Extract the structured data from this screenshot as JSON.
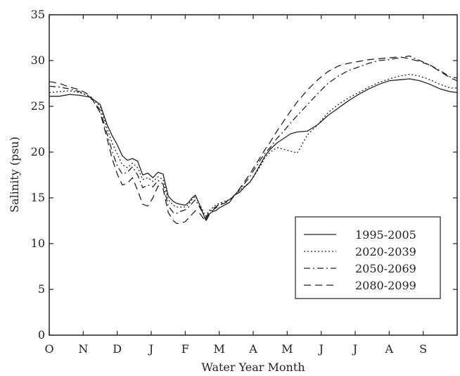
{
  "chart_data": {
    "type": "line",
    "xlabel": "Water Year Month",
    "ylabel": "Salinity (psu)",
    "ylim": [
      0,
      35
    ],
    "yticks": [
      "0",
      "5",
      "10",
      "15",
      "20",
      "25",
      "30",
      "35"
    ],
    "x_categories": [
      "O",
      "N",
      "D",
      "J",
      "F",
      "M",
      "A",
      "M",
      "J",
      "J",
      "A",
      "S"
    ],
    "xlim": [
      0,
      12
    ],
    "grid": false,
    "legend_position": "bottom-right",
    "series": [
      {
        "name": "1995-2005",
        "dash": "solid",
        "x": [
          0,
          0.3,
          0.6,
          0.9,
          1.2,
          1.5,
          1.7,
          1.85,
          2.0,
          2.15,
          2.3,
          2.45,
          2.6,
          2.75,
          2.9,
          3.05,
          3.2,
          3.35,
          3.5,
          3.65,
          3.75,
          3.85,
          4.0,
          4.1,
          4.2,
          4.3,
          4.45,
          4.6,
          4.7,
          4.8,
          4.9,
          5.0,
          5.15,
          5.3,
          5.45,
          5.6,
          5.75,
          5.9,
          6.05,
          6.2,
          6.35,
          6.5,
          6.7,
          6.9,
          7.1,
          7.3,
          7.6,
          7.9,
          8.2,
          8.5,
          8.8,
          9.1,
          9.4,
          9.7,
          10.0,
          10.3,
          10.6,
          10.9,
          11.2,
          11.5,
          11.8,
          12
        ],
        "y": [
          26.1,
          26.1,
          26.3,
          26.2,
          26.0,
          25.2,
          23.0,
          21.8,
          20.8,
          19.6,
          19.1,
          19.3,
          19.0,
          17.5,
          17.7,
          17.2,
          17.8,
          17.6,
          15.2,
          14.6,
          14.4,
          14.3,
          14.2,
          14.5,
          15.0,
          15.3,
          14.0,
          12.6,
          13.2,
          13.5,
          13.6,
          13.9,
          14.2,
          14.5,
          15.3,
          15.6,
          16.2,
          16.7,
          17.6,
          18.6,
          19.6,
          20.3,
          21.0,
          21.5,
          22.0,
          22.2,
          22.3,
          23.0,
          24.0,
          24.8,
          25.6,
          26.3,
          26.9,
          27.4,
          27.8,
          27.9,
          28.0,
          27.8,
          27.4,
          26.9,
          26.6,
          26.5
        ]
      },
      {
        "name": "2020-2039",
        "dash": "dotted",
        "x": [
          0,
          0.3,
          0.6,
          0.9,
          1.2,
          1.5,
          1.7,
          1.85,
          2.0,
          2.15,
          2.3,
          2.45,
          2.6,
          2.75,
          2.9,
          3.05,
          3.2,
          3.35,
          3.5,
          3.65,
          3.75,
          3.85,
          4.0,
          4.1,
          4.2,
          4.3,
          4.45,
          4.6,
          4.7,
          4.8,
          4.9,
          5.0,
          5.15,
          5.3,
          5.45,
          5.6,
          5.75,
          5.9,
          6.05,
          6.2,
          6.35,
          6.5,
          6.7,
          6.9,
          7.1,
          7.3,
          7.6,
          7.9,
          8.2,
          8.5,
          8.8,
          9.1,
          9.4,
          9.7,
          10.0,
          10.3,
          10.6,
          10.9,
          11.2,
          11.5,
          11.8,
          12
        ],
        "y": [
          26.5,
          26.6,
          26.7,
          26.5,
          26.1,
          25.0,
          22.6,
          21.0,
          19.8,
          18.6,
          18.3,
          18.8,
          18.3,
          17.0,
          17.2,
          16.8,
          17.3,
          17.0,
          14.8,
          14.2,
          14.0,
          14.0,
          14.0,
          14.3,
          14.8,
          15.2,
          14.1,
          13.0,
          13.6,
          13.9,
          14.2,
          14.4,
          14.6,
          14.8,
          15.3,
          15.8,
          16.3,
          16.7,
          17.5,
          18.4,
          19.4,
          20.0,
          20.5,
          20.3,
          20.1,
          19.9,
          21.9,
          23.0,
          24.3,
          25.2,
          25.9,
          26.5,
          27.1,
          27.6,
          28.0,
          28.3,
          28.5,
          28.3,
          27.9,
          27.4,
          27.0,
          27.0
        ]
      },
      {
        "name": "2050-2069",
        "dash": "dashdot",
        "x": [
          0,
          0.3,
          0.6,
          0.9,
          1.2,
          1.5,
          1.7,
          1.85,
          2.0,
          2.15,
          2.3,
          2.45,
          2.6,
          2.75,
          2.9,
          3.05,
          3.2,
          3.35,
          3.5,
          3.65,
          3.75,
          3.85,
          4.0,
          4.1,
          4.2,
          4.3,
          4.45,
          4.6,
          4.7,
          4.8,
          4.9,
          5.0,
          5.15,
          5.3,
          5.45,
          5.6,
          5.75,
          5.9,
          6.05,
          6.2,
          6.35,
          6.5,
          6.7,
          6.9,
          7.1,
          7.3,
          7.6,
          7.9,
          8.2,
          8.5,
          8.8,
          9.1,
          9.4,
          9.7,
          10.0,
          10.3,
          10.6,
          10.9,
          11.2,
          11.5,
          11.8,
          12
        ],
        "y": [
          27.2,
          27.1,
          26.9,
          26.6,
          26.0,
          24.6,
          22.0,
          20.1,
          18.5,
          17.6,
          17.8,
          18.4,
          17.5,
          16.1,
          16.4,
          16.2,
          16.9,
          16.5,
          14.1,
          13.4,
          13.3,
          13.5,
          13.7,
          14.0,
          14.4,
          14.8,
          13.8,
          12.8,
          13.4,
          13.8,
          14.0,
          14.3,
          14.5,
          14.8,
          15.3,
          15.9,
          16.6,
          17.3,
          18.2,
          19.1,
          19.9,
          20.5,
          21.5,
          22.3,
          23.2,
          24.0,
          25.2,
          26.4,
          27.5,
          28.3,
          28.9,
          29.3,
          29.7,
          30.0,
          30.1,
          30.3,
          30.5,
          30.0,
          29.5,
          28.9,
          28.2,
          28.1
        ]
      },
      {
        "name": "2080-2099",
        "dash": "dashed",
        "x": [
          0,
          0.3,
          0.6,
          0.9,
          1.2,
          1.5,
          1.7,
          1.85,
          2.0,
          2.15,
          2.3,
          2.45,
          2.6,
          2.75,
          2.9,
          3.05,
          3.2,
          3.35,
          3.5,
          3.65,
          3.75,
          3.85,
          4.0,
          4.1,
          4.2,
          4.3,
          4.45,
          4.6,
          4.7,
          4.8,
          4.9,
          5.0,
          5.15,
          5.3,
          5.45,
          5.6,
          5.75,
          5.9,
          6.05,
          6.2,
          6.35,
          6.5,
          6.7,
          6.9,
          7.1,
          7.3,
          7.6,
          7.9,
          8.2,
          8.5,
          8.8,
          9.1,
          9.4,
          9.7,
          10.0,
          10.3,
          10.6,
          10.9,
          11.2,
          11.5,
          11.8,
          12
        ],
        "y": [
          27.7,
          27.5,
          27.1,
          26.8,
          26.2,
          24.3,
          21.5,
          19.3,
          17.6,
          16.4,
          16.6,
          17.2,
          15.8,
          14.3,
          14.1,
          15.0,
          16.3,
          16.0,
          13.4,
          12.5,
          12.2,
          12.2,
          12.4,
          12.8,
          13.2,
          13.6,
          13.2,
          12.4,
          13.1,
          13.6,
          13.9,
          14.2,
          14.4,
          14.7,
          15.3,
          16.0,
          16.8,
          17.6,
          18.5,
          19.4,
          20.3,
          21.1,
          22.3,
          23.4,
          24.5,
          25.5,
          26.8,
          27.9,
          28.8,
          29.4,
          29.7,
          29.9,
          30.1,
          30.2,
          30.3,
          30.4,
          30.2,
          29.9,
          29.5,
          28.8,
          28.1,
          27.8
        ]
      }
    ]
  }
}
